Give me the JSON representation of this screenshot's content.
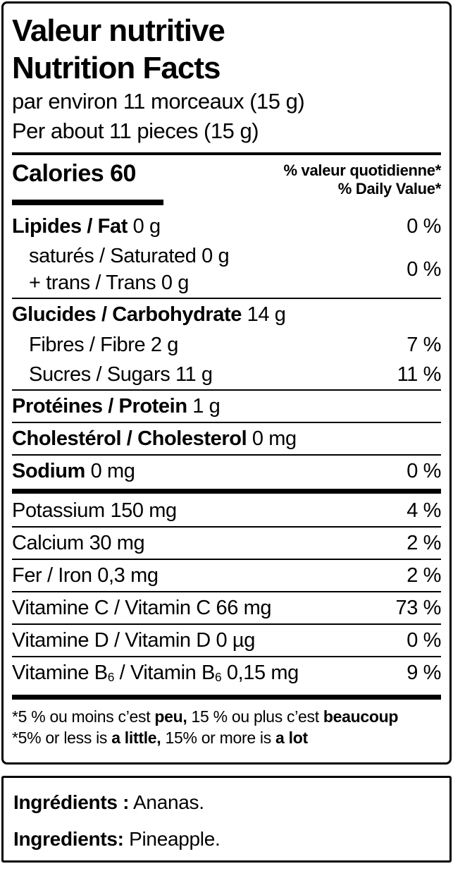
{
  "nf": {
    "title_fr": "Valeur nutritive",
    "title_en": "Nutrition Facts",
    "serving_fr": "par environ 11 morceaux (15 g)",
    "serving_en": "Per about 11 pieces (15 g)",
    "calories": "Calories 60",
    "dv_header_fr": "% valeur quotidienne*",
    "dv_header_en": "% Daily Value*",
    "fat": {
      "bold": "Lipides / Fat",
      "rest": " 0 g",
      "dv": "0 %"
    },
    "satfat": {
      "line1": "saturés / Saturated 0 g",
      "line2": "+ trans / Trans 0 g",
      "dv": "0 %"
    },
    "carb": {
      "bold": "Glucides / Carbohydrate",
      "rest": " 14 g"
    },
    "fibre": {
      "text": "Fibres / Fibre 2 g",
      "dv": "7 %"
    },
    "sugars": {
      "text": "Sucres / Sugars 11 g",
      "dv": "11 %"
    },
    "protein": {
      "bold": "Protéines / Protein",
      "rest": " 1 g"
    },
    "cholesterol": {
      "bold": "Cholestérol / Cholesterol",
      "rest": " 0 mg"
    },
    "sodium": {
      "bold": "Sodium",
      "rest": " 0 mg",
      "dv": "0 %"
    },
    "potassium": {
      "text": "Potassium 150 mg",
      "dv": "4 %"
    },
    "calcium": {
      "text": "Calcium 30 mg",
      "dv": "2 %"
    },
    "iron": {
      "text": "Fer / Iron 0,3 mg",
      "dv": "2 %"
    },
    "vitamin_c": {
      "text": "Vitamine C / Vitamin C 66 mg",
      "dv": "73 %"
    },
    "vitamin_d": {
      "text": "Vitamine D / Vitamin D 0 µg",
      "dv": "0 %"
    },
    "vitamin_b6": {
      "p1": "Vitamine B",
      "sub1": "6",
      "p2": " / Vitamin B",
      "sub2": "6",
      "p3": " 0,15 mg",
      "dv": "9 %"
    },
    "footnote_fr": {
      "p1": "*5 % ou moins c’est ",
      "b1": "peu,",
      "p2": " 15 % ou plus c’est ",
      "b2": "beaucoup"
    },
    "footnote_en": {
      "p1": "*5% or less is ",
      "b1": "a little,",
      "p2": " 15% or more is ",
      "b2": "a lot"
    }
  },
  "ingredients": {
    "fr_label": "Ingrédients :",
    "fr_value": " Ananas.",
    "en_label": "Ingredients:",
    "en_value": " Pineapple."
  },
  "colors": {
    "ink": "#000000",
    "background": "#ffffff"
  }
}
